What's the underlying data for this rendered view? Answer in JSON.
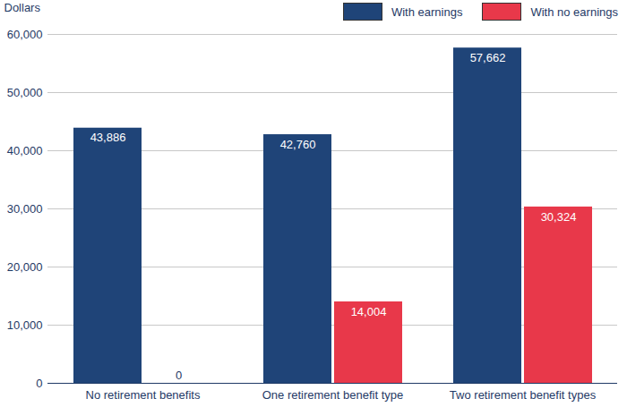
{
  "chart_data": {
    "type": "bar",
    "categories": [
      "No retirement benefits",
      "One retirement benefit type",
      "Two retirement benefit types"
    ],
    "series": [
      {
        "name": "With earnings",
        "color": "#1f4478",
        "values": [
          43886,
          42760,
          57662
        ],
        "value_labels": [
          "43,886",
          "42,760",
          "57,662"
        ]
      },
      {
        "name": "With no earnings",
        "color": "#e8384a",
        "values": [
          0,
          14004,
          30324
        ],
        "value_labels": [
          "0",
          "14,004",
          "30,324"
        ]
      }
    ],
    "ylabel": "Dollars",
    "ylim": [
      0,
      60000
    ],
    "yticks": [
      0,
      {
        "value": 10000,
        "label": "10,000"
      },
      {
        "value": 20000,
        "label": "20,000"
      },
      {
        "value": 30000,
        "label": "30,000"
      },
      {
        "value": 40000,
        "label": "40,000"
      },
      {
        "value": 50000,
        "label": "50,000"
      },
      {
        "value": 60000,
        "label": "60,000"
      }
    ],
    "grid": true,
    "legend": "top-right",
    "data_labels": true
  }
}
